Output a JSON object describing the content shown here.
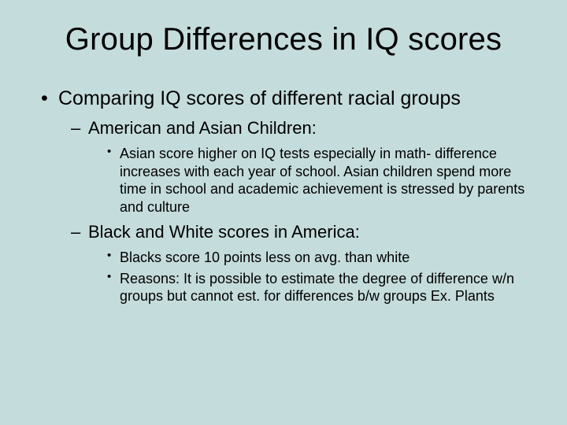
{
  "slide": {
    "background_color": "#c5dcdc",
    "text_color": "#000000",
    "font_family": "Arial",
    "title": {
      "text": "Group Differences in IQ scores",
      "fontsize": 40,
      "align": "center"
    },
    "bullets": [
      {
        "text": "Comparing IQ scores of different racial groups",
        "fontsize": 25,
        "marker": "•",
        "children": [
          {
            "text": "American and Asian Children:",
            "fontsize": 22,
            "marker": "–",
            "children": [
              {
                "text": "Asian score higher on IQ tests especially in math- difference increases with each year of school. Asian children spend more time in school and academic achievement is stressed by parents and culture",
                "fontsize": 18,
                "marker": "•"
              }
            ]
          },
          {
            "text": "Black and White scores in America:",
            "fontsize": 22,
            "marker": "–",
            "children": [
              {
                "text": "Blacks score 10 points less on avg. than white",
                "fontsize": 18,
                "marker": "•"
              },
              {
                "text": "Reasons:  It is possible to estimate the degree of difference w/n groups but cannot est. for differences b/w groups Ex. Plants",
                "fontsize": 18,
                "marker": "•"
              }
            ]
          }
        ]
      }
    ]
  }
}
